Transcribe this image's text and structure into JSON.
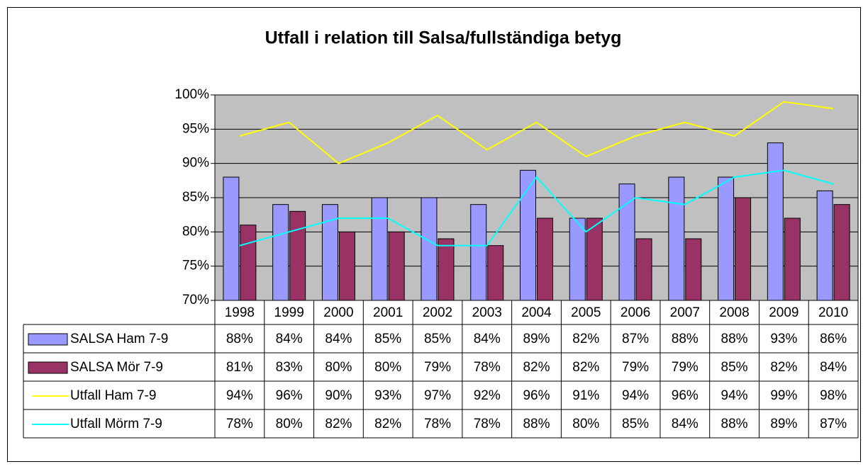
{
  "chart_data": {
    "type": "bar",
    "title": "Utfall i relation till Salsa/fullständiga betyg",
    "categories": [
      "1998",
      "1999",
      "2000",
      "2001",
      "2002",
      "2003",
      "2004",
      "2005",
      "2006",
      "2007",
      "2008",
      "2009",
      "2010"
    ],
    "series": [
      {
        "name": "SALSA Ham 7-9",
        "type": "bar",
        "color": "#9999ff",
        "values": [
          88,
          84,
          84,
          85,
          85,
          84,
          89,
          82,
          87,
          88,
          88,
          93,
          86
        ],
        "value_labels": [
          "88%",
          "84%",
          "84%",
          "85%",
          "85%",
          "84%",
          "89%",
          "82%",
          "87%",
          "88%",
          "88%",
          "93%",
          "86%"
        ]
      },
      {
        "name": "SALSA Mör 7-9",
        "type": "bar",
        "color": "#993366",
        "values": [
          81,
          83,
          80,
          80,
          79,
          78,
          82,
          82,
          79,
          79,
          85,
          82,
          84
        ],
        "value_labels": [
          "81%",
          "83%",
          "80%",
          "80%",
          "79%",
          "78%",
          "82%",
          "82%",
          "79%",
          "79%",
          "85%",
          "82%",
          "84%"
        ]
      },
      {
        "name": "Utfall Ham 7-9",
        "type": "line",
        "color": "#ffff00",
        "values": [
          94,
          96,
          90,
          93,
          97,
          92,
          96,
          91,
          94,
          96,
          94,
          99,
          98
        ],
        "value_labels": [
          "94%",
          "96%",
          "90%",
          "93%",
          "97%",
          "92%",
          "96%",
          "91%",
          "94%",
          "96%",
          "94%",
          "99%",
          "98%"
        ]
      },
      {
        "name": "Utfall Mörm 7-9",
        "type": "line",
        "color": "#00ffff",
        "values": [
          78,
          80,
          82,
          82,
          78,
          78,
          88,
          80,
          85,
          84,
          88,
          89,
          87
        ],
        "value_labels": [
          "78%",
          "80%",
          "82%",
          "82%",
          "78%",
          "78%",
          "88%",
          "80%",
          "85%",
          "84%",
          "88%",
          "89%",
          "87%"
        ]
      }
    ],
    "ylim": [
      70,
      100
    ],
    "yticks": [
      {
        "value": 70,
        "label": "70%"
      },
      {
        "value": 75,
        "label": "75%"
      },
      {
        "value": 80,
        "label": "80%"
      },
      {
        "value": 85,
        "label": "85%"
      },
      {
        "value": 90,
        "label": "90%"
      },
      {
        "value": 95,
        "label": "95%"
      },
      {
        "value": 100,
        "label": "100%"
      }
    ],
    "grid": true
  }
}
